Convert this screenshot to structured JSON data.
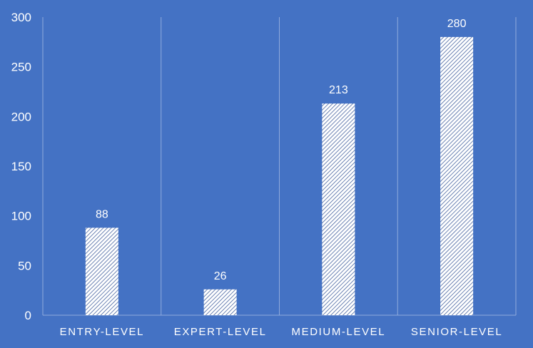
{
  "chart_data": {
    "type": "bar",
    "categories": [
      "ENTRY-LEVEL",
      "EXPERT-LEVEL",
      "MEDIUM-LEVEL",
      "SENIOR-LEVEL"
    ],
    "values": [
      88,
      26,
      213,
      280
    ],
    "data_labels": [
      "88",
      "26",
      "213",
      "280"
    ],
    "title": "",
    "xlabel": "",
    "ylabel": "",
    "ylim": [
      0,
      300
    ],
    "yticks": [
      0,
      50,
      100,
      150,
      200,
      250,
      300
    ],
    "ytick_labels": [
      "0",
      "50",
      "100",
      "150",
      "200",
      "250",
      "300"
    ],
    "grid": "vertical category separators",
    "legend": "none",
    "bar_fill": "white diagonal hatch pattern",
    "colors": {
      "background": "#4472C4",
      "bar": "#FFFFFF",
      "text": "#FFFFFF",
      "gridline": "#8FAADC"
    }
  }
}
